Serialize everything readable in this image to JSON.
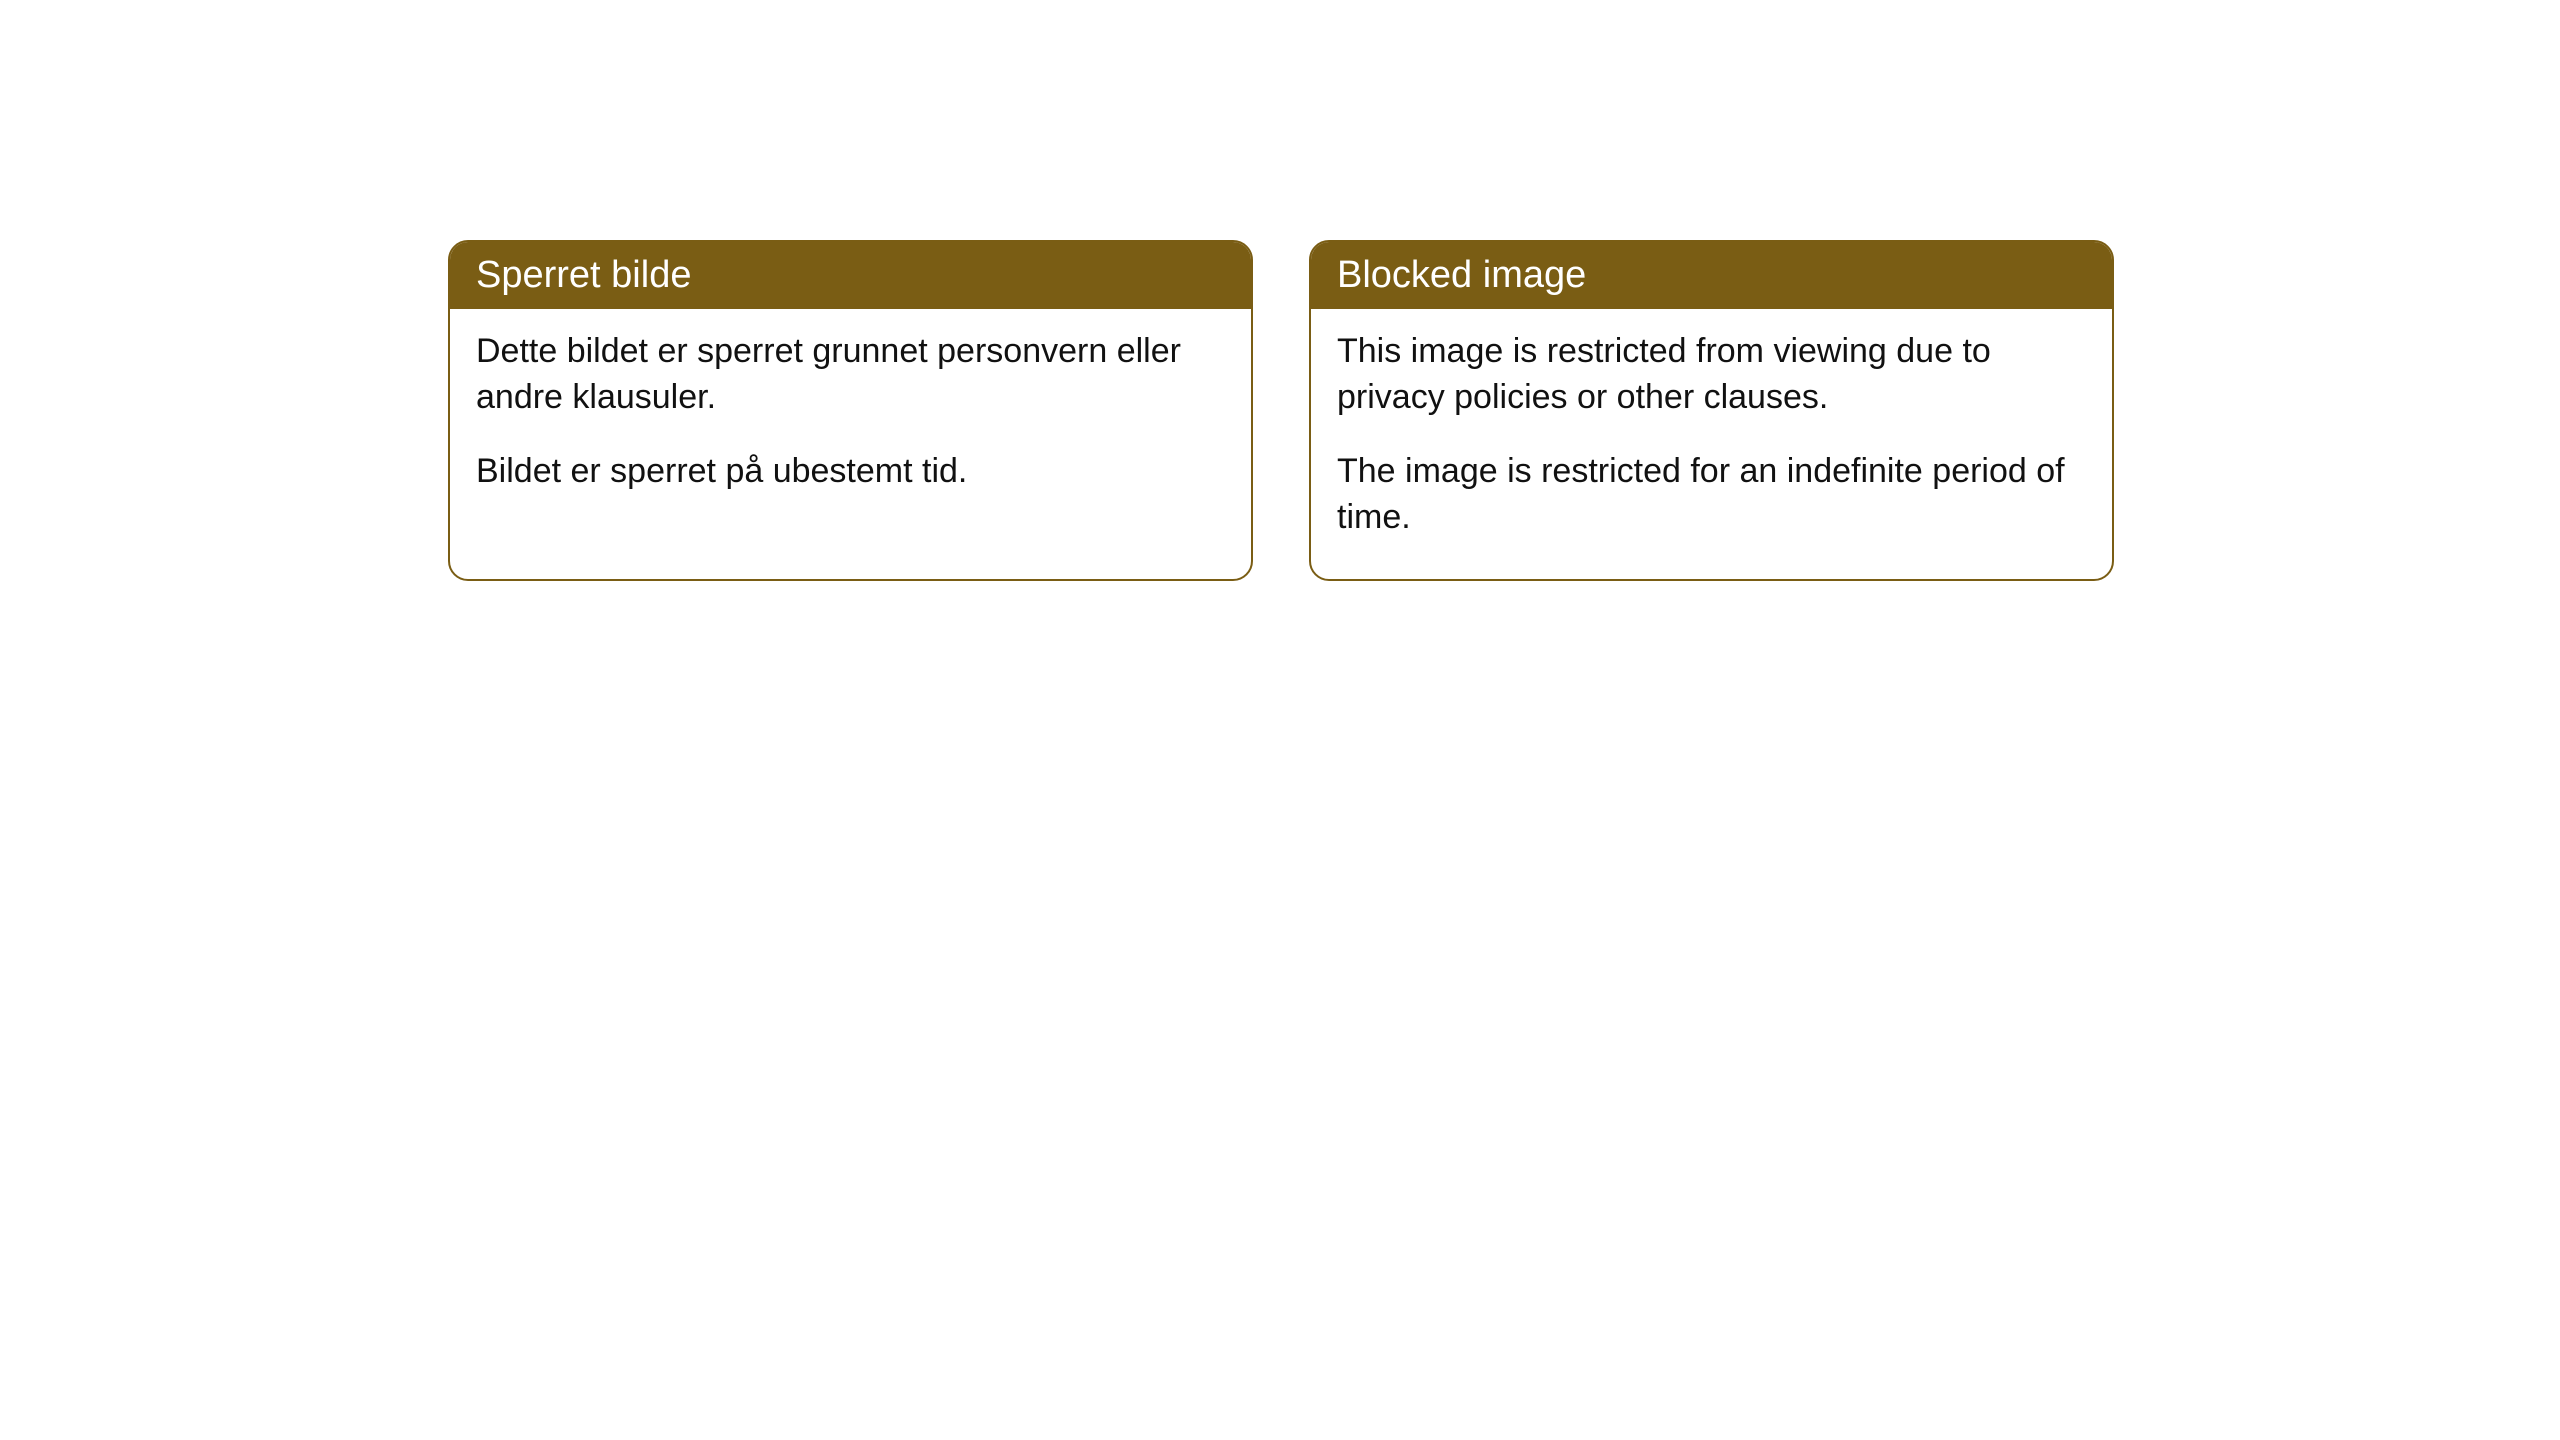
{
  "cards": [
    {
      "header": "Sperret bilde",
      "paragraph1": "Dette bildet er sperret grunnet personvern eller andre klausuler.",
      "paragraph2": "Bildet er sperret på ubestemt tid."
    },
    {
      "header": "Blocked image",
      "paragraph1": "This image is restricted from viewing due to privacy policies or other clauses.",
      "paragraph2": "The image is restricted for an indefinite period of time."
    }
  ],
  "styling": {
    "header_background_color": "#7a5d14",
    "header_text_color": "#ffffff",
    "border_color": "#7a5d14",
    "body_text_color": "#111111",
    "page_background_color": "#ffffff",
    "border_radius": 20,
    "header_fontsize": 38,
    "body_fontsize": 34
  }
}
